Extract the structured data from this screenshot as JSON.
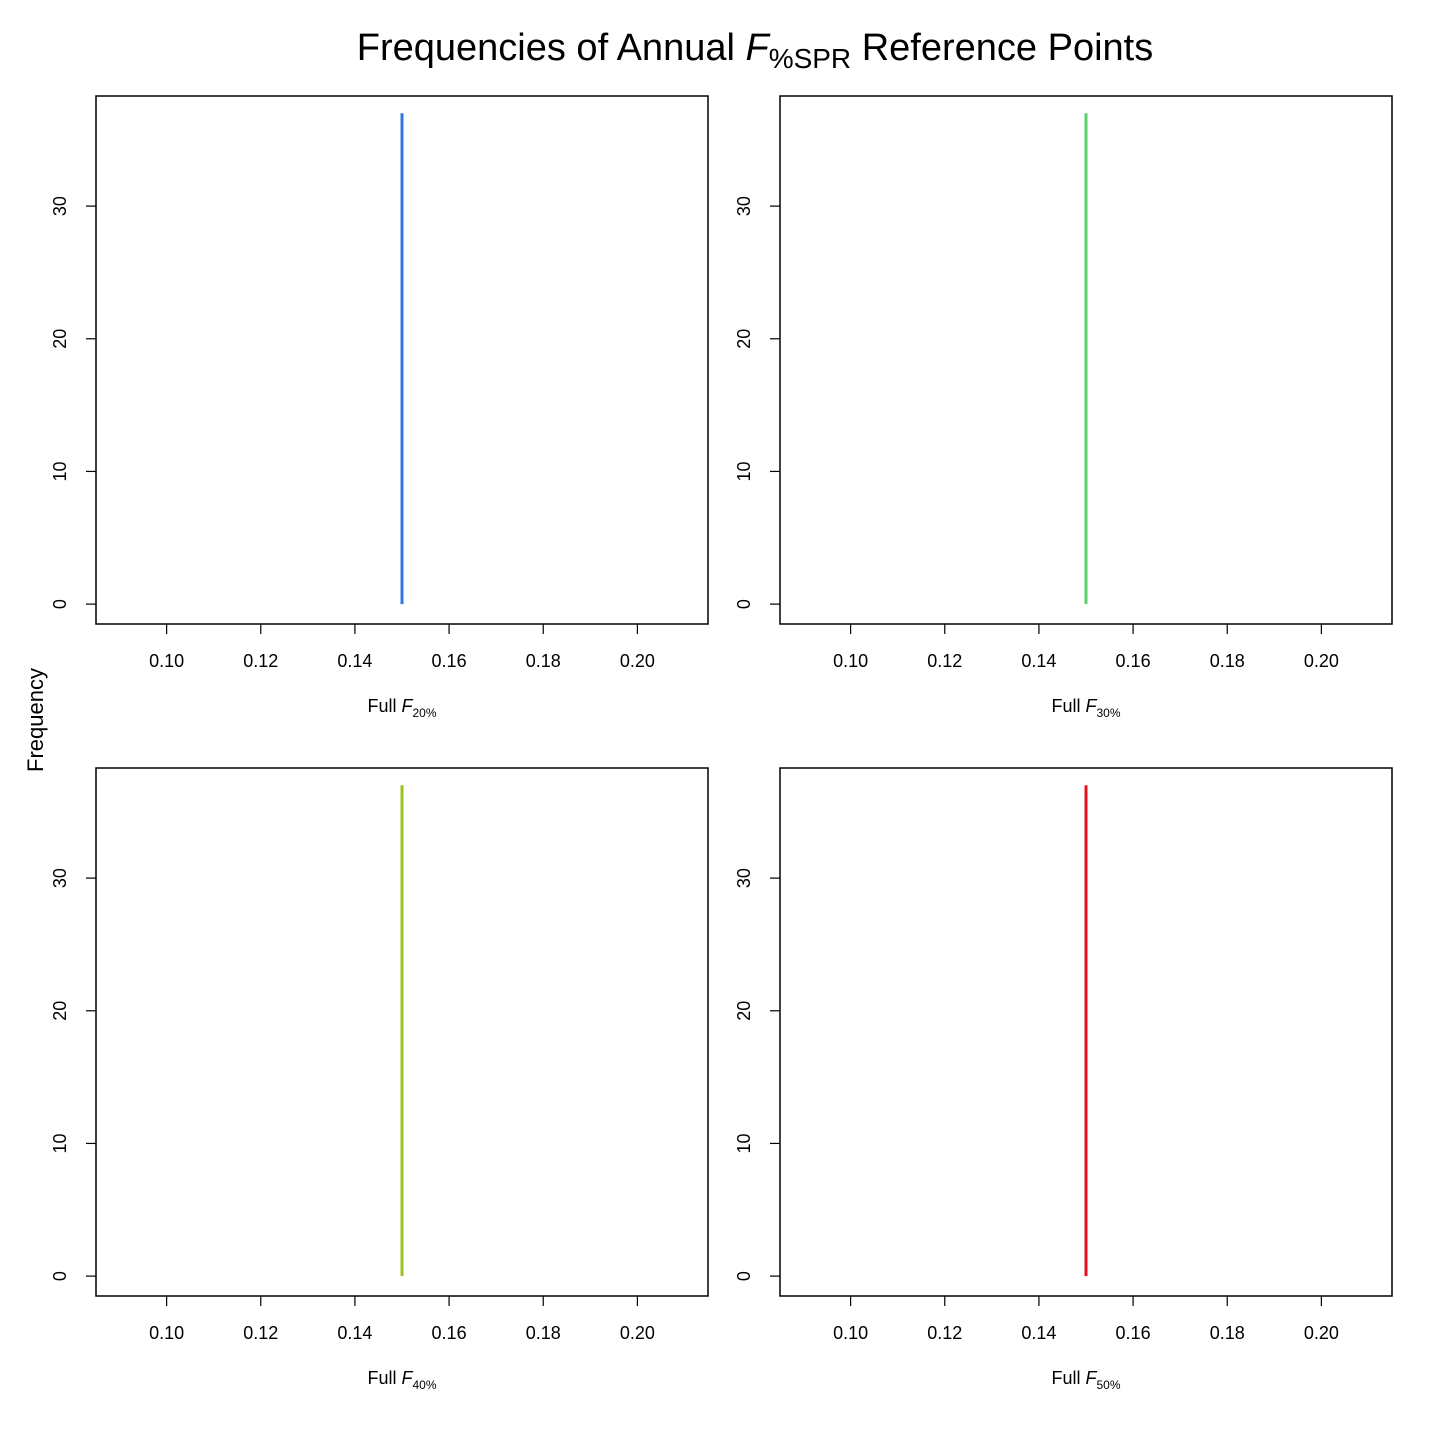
{
  "title": {
    "prefix": "Frequencies of Annual ",
    "symbol": "F",
    "subscript": "%SPR",
    "suffix": " Reference Points"
  },
  "ylabel": "Frequency",
  "chart_data": [
    {
      "type": "bar",
      "xlabel_prefix": "Full",
      "xlabel_symbol": "F",
      "xlabel_subscript": "20%",
      "color": "#2F78E4",
      "bins": [
        {
          "x": 0.15,
          "count": 37
        }
      ],
      "xlim": [
        0.085,
        0.215
      ],
      "ylim": [
        -1.5,
        38.3
      ],
      "xticks": [
        0.1,
        0.12,
        0.14,
        0.16,
        0.18,
        0.2
      ],
      "xtick_labels": [
        "0.10",
        "0.12",
        "0.14",
        "0.16",
        "0.18",
        "0.20"
      ],
      "yticks": [
        0,
        10,
        20,
        30
      ],
      "ytick_labels": [
        "0",
        "10",
        "20",
        "30"
      ],
      "grid": false,
      "legend": "none"
    },
    {
      "type": "bar",
      "xlabel_prefix": "Full",
      "xlabel_symbol": "F",
      "xlabel_subscript": "30%",
      "color": "#5DD06B",
      "bins": [
        {
          "x": 0.15,
          "count": 37
        }
      ],
      "xlim": [
        0.085,
        0.215
      ],
      "ylim": [
        -1.5,
        38.3
      ],
      "xticks": [
        0.1,
        0.12,
        0.14,
        0.16,
        0.18,
        0.2
      ],
      "xtick_labels": [
        "0.10",
        "0.12",
        "0.14",
        "0.16",
        "0.18",
        "0.20"
      ],
      "yticks": [
        0,
        10,
        20,
        30
      ],
      "ytick_labels": [
        "0",
        "10",
        "20",
        "30"
      ],
      "grid": false,
      "legend": "none"
    },
    {
      "type": "bar",
      "xlabel_prefix": "Full",
      "xlabel_symbol": "F",
      "xlabel_subscript": "40%",
      "color": "#9BC31C",
      "bins": [
        {
          "x": 0.15,
          "count": 37
        }
      ],
      "xlim": [
        0.085,
        0.215
      ],
      "ylim": [
        -1.5,
        38.3
      ],
      "xticks": [
        0.1,
        0.12,
        0.14,
        0.16,
        0.18,
        0.2
      ],
      "xtick_labels": [
        "0.10",
        "0.12",
        "0.14",
        "0.16",
        "0.18",
        "0.20"
      ],
      "yticks": [
        0,
        10,
        20,
        30
      ],
      "ytick_labels": [
        "0",
        "10",
        "20",
        "30"
      ],
      "grid": false,
      "legend": "none"
    },
    {
      "type": "bar",
      "xlabel_prefix": "Full",
      "xlabel_symbol": "F",
      "xlabel_subscript": "50%",
      "color": "#E8121F",
      "bins": [
        {
          "x": 0.15,
          "count": 37
        }
      ],
      "xlim": [
        0.085,
        0.215
      ],
      "ylim": [
        -1.5,
        38.3
      ],
      "xticks": [
        0.1,
        0.12,
        0.14,
        0.16,
        0.18,
        0.2
      ],
      "xtick_labels": [
        "0.10",
        "0.12",
        "0.14",
        "0.16",
        "0.18",
        "0.20"
      ],
      "yticks": [
        0,
        10,
        20,
        30
      ],
      "ytick_labels": [
        "0",
        "10",
        "20",
        "30"
      ],
      "grid": false,
      "legend": "none"
    }
  ]
}
